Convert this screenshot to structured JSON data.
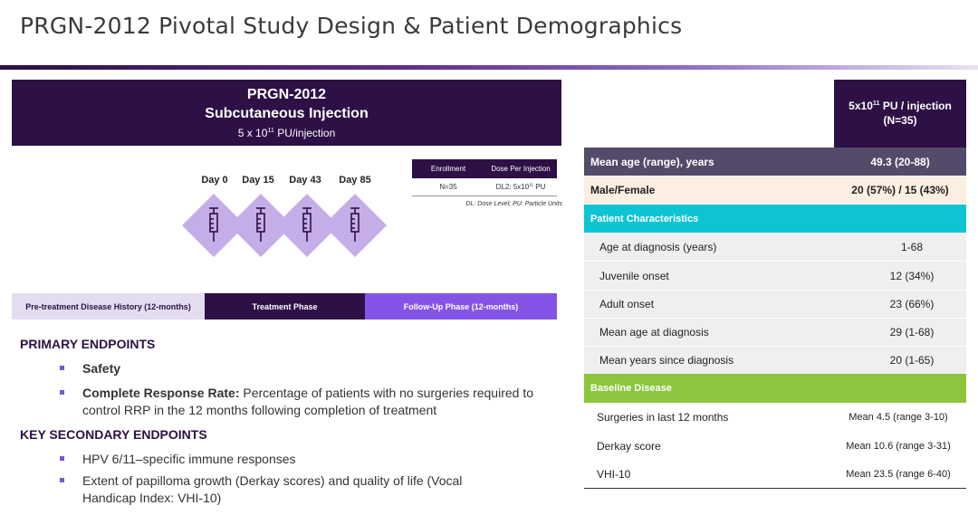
{
  "title": "PRGN-2012 Pivotal Study Design & Patient Demographics",
  "drug": {
    "name": "PRGN-2012",
    "route": "Subcutaneous Injection",
    "dose_prefix": "5 x 10",
    "dose_exp": "11",
    "dose_suffix": " PU/injection"
  },
  "days": [
    "Day 0",
    "Day 15",
    "Day 43",
    "Day 85"
  ],
  "enrollment": {
    "headers": [
      "Enrollment",
      "Dose Per Injection"
    ],
    "n": "N=35",
    "dose_prefix": "DL2: 5x10",
    "dose_exp": "11",
    "dose_suffix": " PU",
    "note": "DL: Dose Level; PU: Particle Units"
  },
  "phases": [
    "Pre-treatment Disease History (12-months)",
    "Treatment Phase",
    "Follow-Up Phase (12-months)"
  ],
  "endpoints": {
    "primary_heading": "PRIMARY ENDPOINTS",
    "primary_1": "Safety",
    "primary_2_bold": "Complete Response Rate:",
    "primary_2_text": " Percentage of patients with no surgeries required to control RRP in the 12 months following completion of treatment",
    "secondary_heading": "KEY SECONDARY ENDPOINTS",
    "secondary_1": "HPV 6/11–specific immune responses",
    "secondary_2": "Extent of papilloma growth (Derkay scores) and quality of life (Vocal Handicap Index: VHI-10)"
  },
  "table": {
    "header_prefix": "5x10",
    "header_exp": "11",
    "header_suffix": " PU / injection",
    "header_n": "(N=35)",
    "mean_age_label": "Mean age (range), years",
    "mean_age_value": "49.3 (20-88)",
    "sex_label": "Male/Female",
    "sex_value": "20 (57%) / 15 (43%)",
    "patient_characteristics": "Patient Characteristics",
    "pc_rows": [
      {
        "label": "Age at diagnosis (years)",
        "value": "1-68"
      },
      {
        "label": "Juvenile onset",
        "value": "12 (34%)"
      },
      {
        "label": "Adult onset",
        "value": "23 (66%)"
      },
      {
        "label": "Mean age at diagnosis",
        "value": "29 (1-68)"
      },
      {
        "label": "Mean years since diagnosis",
        "value": "20 (1-65)"
      }
    ],
    "baseline_disease": "Baseline Disease",
    "bd_rows": [
      {
        "label": "Surgeries in last 12 months",
        "value": "Mean 4.5 (range 3-10)"
      },
      {
        "label": "Derkay score",
        "value": "Mean 10.6 (range 3-31)"
      },
      {
        "label": "VHI-10",
        "value": "Mean 23.5 (range 6-40)"
      }
    ]
  },
  "colors": {
    "dark_purple": "#2d1045",
    "violet": "#8454e6",
    "lavender": "#c5aee8",
    "cyan": "#0fc4d2",
    "green": "#8cc63f"
  }
}
